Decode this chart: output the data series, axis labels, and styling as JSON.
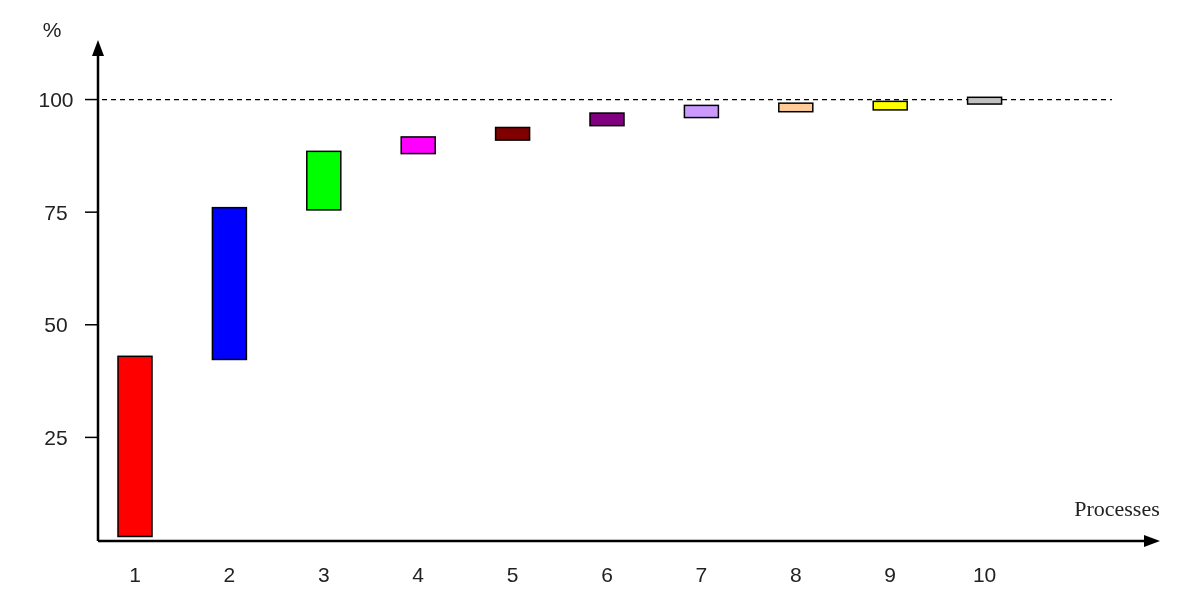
{
  "chart_data": {
    "type": "bar",
    "xlabel": "Processes",
    "ylabel": "%",
    "categories": [
      "1",
      "2",
      "3",
      "4",
      "5",
      "6",
      "7",
      "8",
      "9",
      "10"
    ],
    "base": [
      3,
      42.3,
      75.5,
      88,
      91,
      94.2,
      96,
      97.3,
      97.7,
      99
    ],
    "values": [
      40,
      33.7,
      13,
      3.7,
      2.8,
      2.8,
      2.7,
      1.9,
      1.9,
      1.5
    ],
    "colors": [
      "#ff0000",
      "#0000ff",
      "#00ff00",
      "#ff00ff",
      "#800000",
      "#800080",
      "#cc99ff",
      "#ffcc99",
      "#ffff00",
      "#c0c0c0"
    ],
    "ylim": [
      2,
      110
    ],
    "yticks": [
      25,
      50,
      75,
      100
    ],
    "ref_lines": [
      {
        "axis": "y",
        "value": 100,
        "line_style": "dashed"
      }
    ],
    "grid": false
  }
}
